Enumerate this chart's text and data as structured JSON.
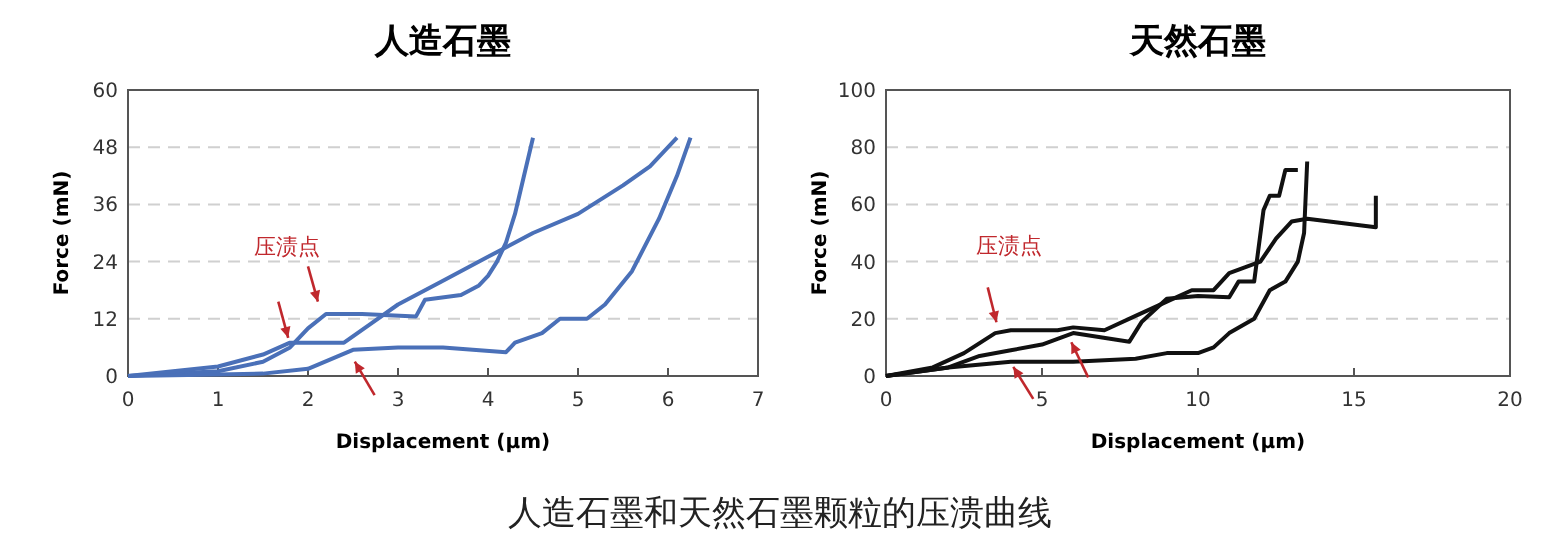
{
  "chart_data": [
    {
      "type": "line",
      "title": "人造石墨",
      "xlabel": "Displacement (μm)",
      "ylabel": "Force (mN)",
      "annotations": [
        "压渍点",
        "人造石墨和天然石墨颗粒的压溃曲线"
      ],
      "xlim": [
        0,
        7
      ],
      "xticks": [
        0,
        1,
        2,
        3,
        4,
        5,
        6,
        7
      ],
      "ylim": [
        0,
        60
      ],
      "yticks": [
        0,
        12,
        24,
        36,
        48,
        60
      ],
      "grid": "y",
      "marker": "none",
      "line_style": "solid",
      "series": [
        {
          "color": "#4a70b8",
          "x": [
            0,
            0.5,
            1,
            1.5,
            1.8,
            2,
            2.2,
            2.6,
            3.2,
            3.3,
            3.7,
            3.9,
            4,
            4.1,
            4.2,
            4.3,
            4.4,
            4.5
          ],
          "values": [
            0,
            0.5,
            1,
            3,
            6,
            10,
            13,
            13,
            12.5,
            16,
            17,
            19,
            21,
            24,
            28,
            34,
            42,
            50
          ]
        },
        {
          "color": "#4a70b8",
          "x": [
            0,
            0.5,
            1,
            1.5,
            1.8,
            2.4,
            2.7,
            3,
            3.5,
            4,
            4.5,
            5,
            5.5,
            5.8,
            6.1
          ],
          "values": [
            0,
            1,
            2,
            4.5,
            7,
            7,
            11,
            15,
            20,
            25,
            30,
            34,
            40,
            44,
            50
          ]
        },
        {
          "color": "#4a70b8",
          "x": [
            0,
            1,
            1.5,
            2,
            2.5,
            3,
            3.5,
            4.2,
            4.3,
            4.6,
            4.8,
            5.1,
            5.3,
            5.6,
            5.9,
            6.1,
            6.25
          ],
          "values": [
            0,
            0.3,
            0.5,
            1.5,
            5.5,
            6,
            6,
            5,
            7,
            9,
            12,
            12,
            15,
            22,
            33,
            42,
            50
          ]
        }
      ]
    },
    {
      "type": "line",
      "title": "天然石墨",
      "xlabel": "Displacement (μm)",
      "ylabel": "Force (mN)",
      "annotations": [
        "压渍点"
      ],
      "xlim": [
        0,
        20
      ],
      "xticks": [
        0,
        5,
        10,
        15,
        20
      ],
      "ylim": [
        0,
        100
      ],
      "yticks": [
        0,
        20,
        40,
        60,
        80,
        100
      ],
      "grid": "y",
      "marker": "none",
      "line_style": "solid",
      "series": [
        {
          "color": "#111111",
          "x": [
            0,
            1.5,
            2.5,
            3.5,
            4,
            5.5,
            6,
            7,
            8,
            9,
            9.8,
            10.5,
            11,
            11.5,
            12,
            12.5,
            13,
            13.5,
            15.7,
            15.7
          ],
          "values": [
            0,
            3,
            8,
            15,
            16,
            16,
            17,
            16,
            21,
            26,
            30,
            30,
            36,
            38,
            40,
            48,
            54,
            55,
            52,
            63
          ]
        },
        {
          "color": "#111111",
          "x": [
            0,
            2,
            3,
            4,
            5,
            6,
            7.8,
            8.2,
            9,
            10,
            11,
            11.3,
            11.8,
            12.1,
            12.3,
            12.6,
            12.8,
            13.2
          ],
          "values": [
            0,
            3,
            7,
            9,
            11,
            15,
            12,
            19,
            27,
            28,
            27.5,
            33,
            33,
            58,
            63,
            63,
            72,
            72
          ]
        },
        {
          "color": "#111111",
          "x": [
            0,
            2,
            4,
            6,
            8,
            9,
            10,
            10.5,
            11,
            11.8,
            12.3,
            12.8,
            13.2,
            13.4,
            13.5
          ],
          "values": [
            0,
            3,
            5,
            5,
            6,
            8,
            8,
            10,
            15,
            20,
            30,
            33,
            40,
            50,
            75
          ]
        }
      ]
    }
  ]
}
